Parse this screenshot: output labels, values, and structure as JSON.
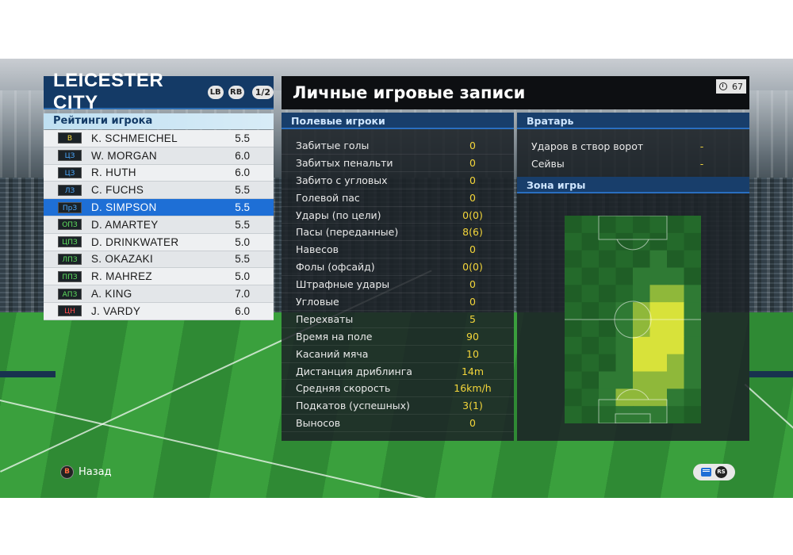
{
  "team": {
    "name": "LEICESTER CITY",
    "lb_label": "LB",
    "rb_label": "RB",
    "page_indicator": "1/2"
  },
  "ratings_title": "Рейтинги игрока",
  "players": [
    {
      "pos": "В",
      "pos_color": "#f4d63a",
      "name": "K. SCHMEICHEL",
      "rating": "5.5"
    },
    {
      "pos": "ЦЗ",
      "pos_color": "#4aa8ff",
      "name": "W. MORGAN",
      "rating": "6.0"
    },
    {
      "pos": "ЦЗ",
      "pos_color": "#4aa8ff",
      "name": "R. HUTH",
      "rating": "6.0"
    },
    {
      "pos": "ЛЗ",
      "pos_color": "#4aa8ff",
      "name": "C. FUCHS",
      "rating": "5.5"
    },
    {
      "pos": "ПрЗ",
      "pos_color": "#4aa8ff",
      "name": "D. SIMPSON",
      "rating": "5.5",
      "selected": true
    },
    {
      "pos": "ОПЗ",
      "pos_color": "#5ee05e",
      "name": "D. AMARTEY",
      "rating": "5.5"
    },
    {
      "pos": "ЦПЗ",
      "pos_color": "#5ee05e",
      "name": "D. DRINKWATER",
      "rating": "5.0"
    },
    {
      "pos": "ЛПЗ",
      "pos_color": "#5ee05e",
      "name": "S. OKAZAKI",
      "rating": "5.5"
    },
    {
      "pos": "ППЗ",
      "pos_color": "#5ee05e",
      "name": "R. MAHREZ",
      "rating": "5.0"
    },
    {
      "pos": "АПЗ",
      "pos_color": "#5ee05e",
      "name": "A. KING",
      "rating": "7.0"
    },
    {
      "pos": "ЦН",
      "pos_color": "#ff4a4a",
      "name": "J. VARDY",
      "rating": "6.0"
    }
  ],
  "main_title": "Личные игровые записи",
  "timer": {
    "icon": "clock-icon",
    "value": "67"
  },
  "field_players": {
    "heading": "Полевые игроки",
    "stats": [
      {
        "label": "Забитые голы",
        "value": "0"
      },
      {
        "label": "Забитых пенальти",
        "value": "0"
      },
      {
        "label": "Забито с угловых",
        "value": "0"
      },
      {
        "label": "Голевой пас",
        "value": "0"
      },
      {
        "label": "Удары (по цели)",
        "value": "0(0)"
      },
      {
        "label": "Пасы (переданные)",
        "value": "8(6)"
      },
      {
        "label": "Навесов",
        "value": "0"
      },
      {
        "label": "Фолы (офсайд)",
        "value": "0(0)"
      },
      {
        "label": "Штрафные удары",
        "value": "0"
      },
      {
        "label": "Угловые",
        "value": "0"
      },
      {
        "label": "Перехваты",
        "value": "5"
      },
      {
        "label": "Время на поле",
        "value": "90"
      },
      {
        "label": "Касаний мяча",
        "value": "10"
      },
      {
        "label": "Дистанция дриблинга",
        "value": "14m"
      },
      {
        "label": "Средняя скорость",
        "value": "16km/h"
      },
      {
        "label": "Подкатов (успешных)",
        "value": "3(1)"
      },
      {
        "label": "Выносов",
        "value": "0"
      }
    ]
  },
  "goalkeeper": {
    "heading": "Вратарь",
    "stats": [
      {
        "label": "Ударов в створ ворот",
        "value": "-"
      },
      {
        "label": "Сейвы",
        "value": "-"
      }
    ]
  },
  "zone": {
    "heading": "Зона игры",
    "heat_colors": {
      "low": "#2f7a34",
      "mid": "#8fb83a",
      "high": "#d8e23a"
    }
  },
  "controls": {
    "back_icon": "B",
    "back_label": "Назад",
    "rs_icon": "RS"
  }
}
